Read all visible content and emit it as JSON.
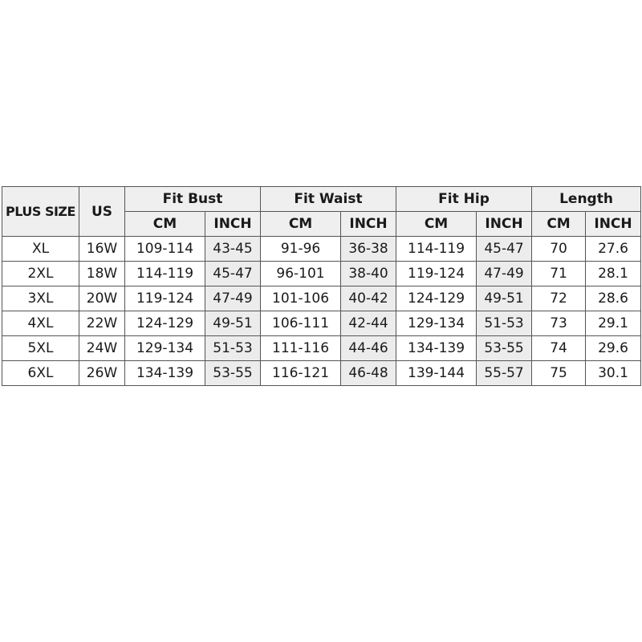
{
  "headers": {
    "plus_size": "PLUS SIZE",
    "us": "US",
    "groups": [
      "Fit Bust",
      "Fit Waist",
      "Fit Hip",
      "Length"
    ],
    "sub": [
      "CM",
      "INCH",
      "CM",
      "INCH",
      "CM",
      "INCH",
      "CM",
      "INCH"
    ]
  },
  "rows": [
    [
      "XL",
      "16W",
      "109-114",
      "43-45",
      "91-96",
      "36-38",
      "114-119",
      "45-47",
      "70",
      "27.6"
    ],
    [
      "2XL",
      "18W",
      "114-119",
      "45-47",
      "96-101",
      "38-40",
      "119-124",
      "47-49",
      "71",
      "28.1"
    ],
    [
      "3XL",
      "20W",
      "119-124",
      "47-49",
      "101-106",
      "40-42",
      "124-129",
      "49-51",
      "72",
      "28.6"
    ],
    [
      "4XL",
      "22W",
      "124-129",
      "49-51",
      "106-111",
      "42-44",
      "129-134",
      "51-53",
      "73",
      "29.1"
    ],
    [
      "5XL",
      "24W",
      "129-134",
      "51-53",
      "111-116",
      "44-46",
      "134-139",
      "53-55",
      "74",
      "29.6"
    ],
    [
      "6XL",
      "26W",
      "134-139",
      "53-55",
      "116-121",
      "46-48",
      "139-144",
      "55-57",
      "75",
      "30.1"
    ]
  ],
  "colors": {
    "header_bg": "#efefef",
    "inch_shade": "#ececec",
    "border": "#555555"
  }
}
